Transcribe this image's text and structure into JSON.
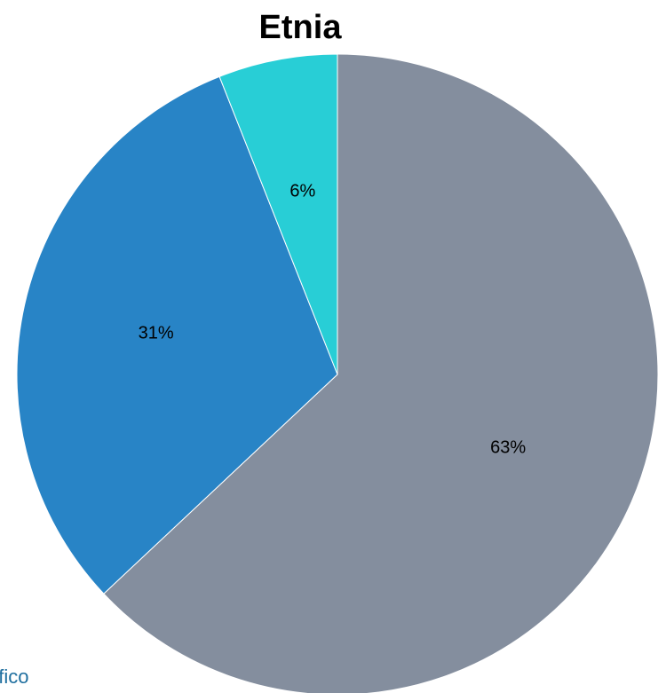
{
  "chart_data": {
    "type": "pie",
    "title": "Etnia",
    "start_angle_deg": 0,
    "direction": "clockwise",
    "slices": [
      {
        "label": "63%",
        "value": 63,
        "color": "#848e9e"
      },
      {
        "label": "31%",
        "value": 31,
        "color": "#2884c6"
      },
      {
        "label": "6%",
        "value": 6,
        "color": "#28ced6"
      }
    ]
  },
  "footer": {
    "text": "áfico"
  }
}
